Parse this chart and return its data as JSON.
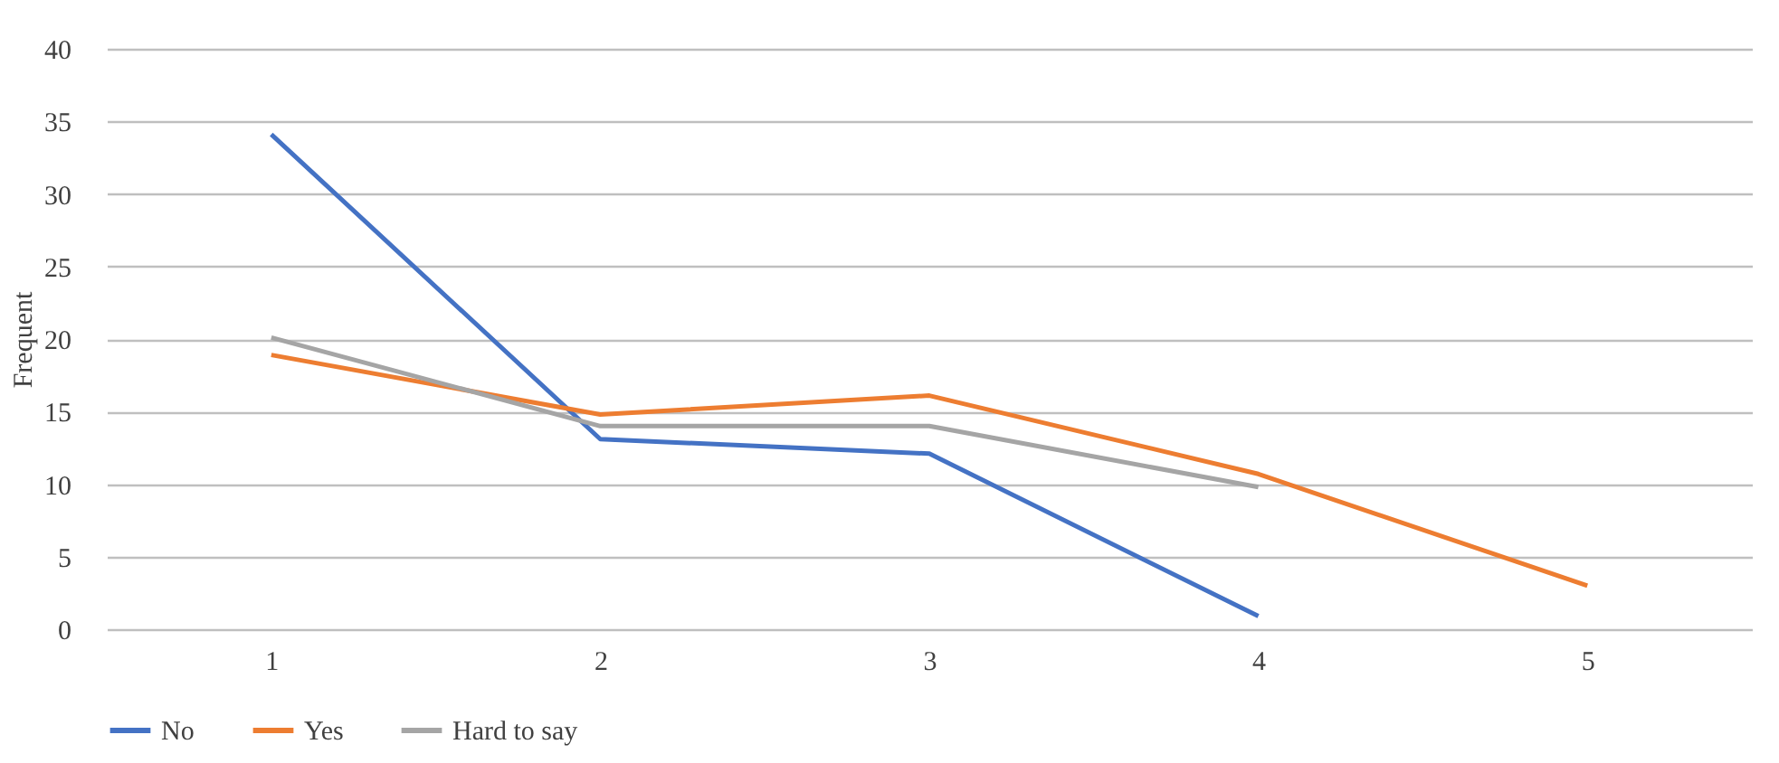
{
  "chart_data": {
    "type": "line",
    "ylabel": "Frequent",
    "categories": [
      "1",
      "2",
      "3",
      "4",
      "5"
    ],
    "series": [
      {
        "name": "No",
        "color": "#4472c4",
        "values": [
          34.1,
          13.1,
          12.1,
          0.9,
          null
        ]
      },
      {
        "name": "Yes",
        "color": "#ed7d31",
        "values": [
          18.9,
          14.8,
          16.1,
          10.7,
          3.0
        ]
      },
      {
        "name": "Hard to say",
        "color": "#a5a5a5",
        "values": [
          20.1,
          14.0,
          14.0,
          9.8,
          null
        ]
      }
    ],
    "ylim": [
      0,
      40
    ],
    "yticks": [
      0,
      5,
      10,
      15,
      20,
      25,
      30,
      35,
      40
    ],
    "grid": "y",
    "legend": "bottom",
    "marker": "none",
    "line_style": "solid"
  }
}
